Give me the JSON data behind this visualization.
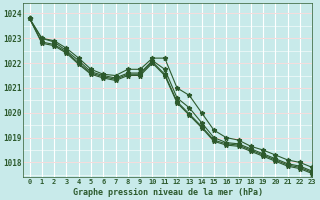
{
  "background_color": "#c8eaea",
  "grid_color_v": "#ffffff",
  "grid_color_h": "#e8b0b0",
  "line_color": "#2d5a2d",
  "xlabel": "Graphe pression niveau de la mer (hPa)",
  "ylim": [
    1017.4,
    1024.4
  ],
  "xlim": [
    -0.5,
    23
  ],
  "yticks": [
    1018,
    1019,
    1020,
    1021,
    1022,
    1023,
    1024
  ],
  "xtick_labels": [
    "0",
    "1",
    "2",
    "3",
    "4",
    "5",
    "6",
    "7",
    "8",
    "9",
    "10",
    "11",
    "12",
    "13",
    "14",
    "15",
    "16",
    "17",
    "18",
    "19",
    "20",
    "21",
    "22",
    "23"
  ],
  "series": [
    [
      1023.8,
      1023.0,
      1022.9,
      1022.6,
      1022.2,
      1021.75,
      1021.55,
      1021.5,
      1021.75,
      1021.75,
      1022.2,
      1022.2,
      1021.0,
      1020.7,
      1020.0,
      1019.3,
      1019.0,
      1018.9,
      1018.65,
      1018.5,
      1018.3,
      1018.1,
      1018.0,
      1017.8
    ],
    [
      1023.8,
      1023.0,
      1022.85,
      1022.5,
      1022.1,
      1021.65,
      1021.5,
      1021.4,
      1021.6,
      1021.6,
      1022.1,
      1021.75,
      1020.6,
      1020.2,
      1019.6,
      1019.0,
      1018.8,
      1018.75,
      1018.55,
      1018.35,
      1018.15,
      1017.95,
      1017.85,
      1017.65
    ],
    [
      1023.8,
      1022.85,
      1022.75,
      1022.45,
      1022.0,
      1021.6,
      1021.45,
      1021.35,
      1021.55,
      1021.55,
      1022.05,
      1021.55,
      1020.45,
      1019.95,
      1019.45,
      1018.9,
      1018.75,
      1018.7,
      1018.5,
      1018.3,
      1018.1,
      1017.9,
      1017.8,
      1017.6
    ],
    [
      1023.8,
      1022.8,
      1022.7,
      1022.4,
      1021.95,
      1021.55,
      1021.4,
      1021.3,
      1021.5,
      1021.5,
      1022.0,
      1021.5,
      1020.4,
      1019.9,
      1019.4,
      1018.85,
      1018.7,
      1018.65,
      1018.45,
      1018.25,
      1018.05,
      1017.85,
      1017.75,
      1017.55
    ]
  ],
  "marker": "*",
  "markersize": 3.5,
  "linewidth": 0.8
}
